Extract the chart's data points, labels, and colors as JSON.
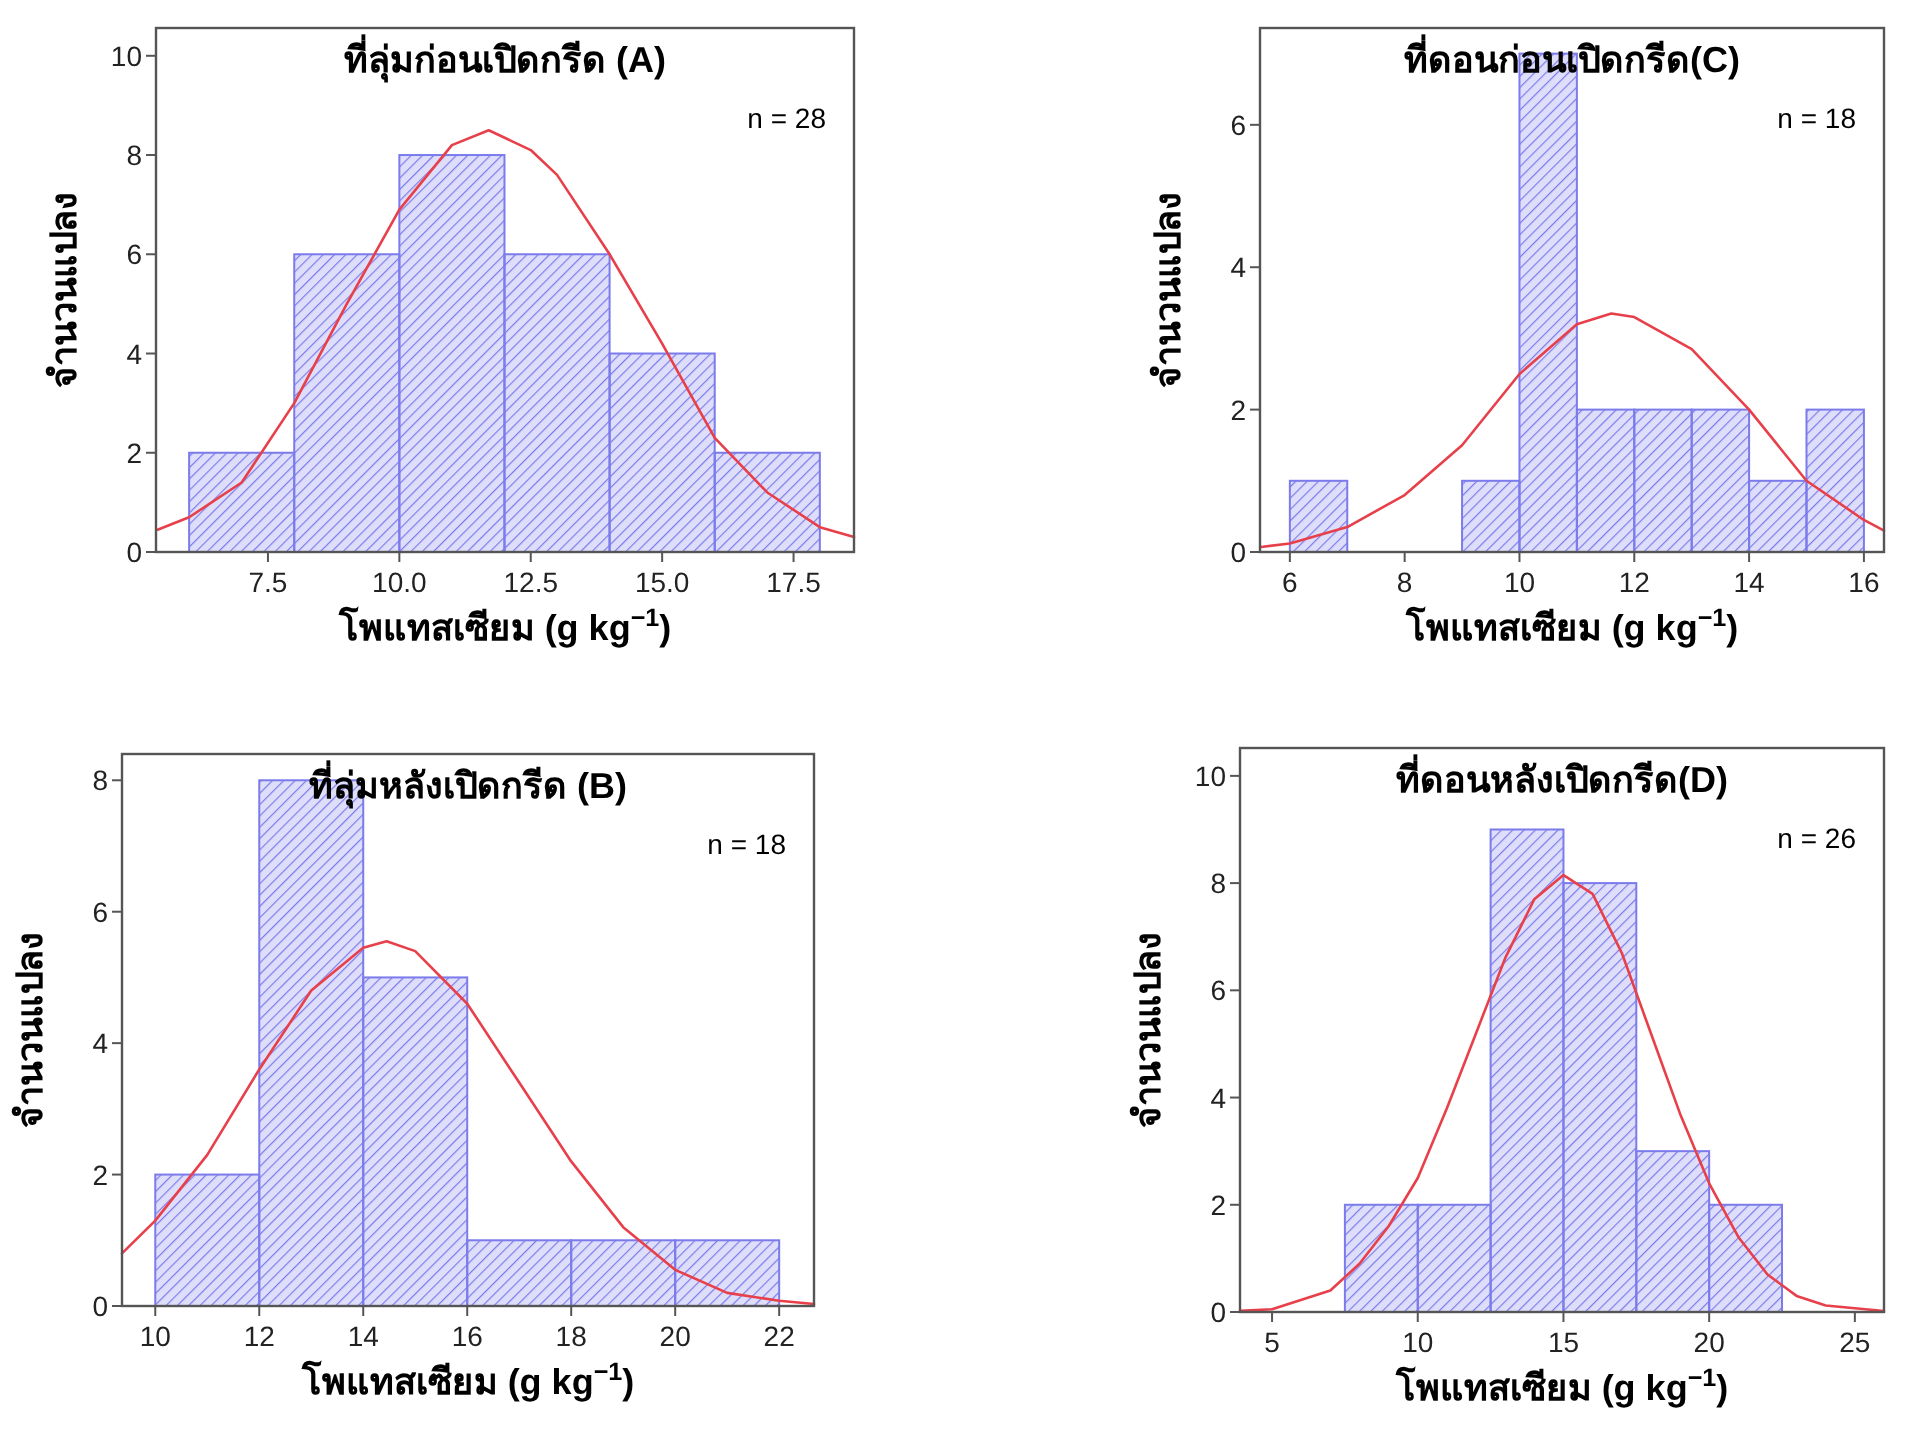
{
  "chart_data": [
    {
      "type": "histogram",
      "title": "ที่ลุ่มก่อนเปิดกรีด (A)",
      "xlabel": "โพแทสเซียม (g kg$^{−1}$)",
      "ylabel": "จำนวนแปลง",
      "annotations": [
        "n = 28"
      ],
      "bins": [
        6,
        8,
        10,
        12,
        14,
        16,
        18
      ],
      "values": [
        2,
        6,
        8,
        6,
        4,
        2
      ],
      "color": "#7b7bec",
      "xlim": [
        5.37,
        18.65
      ],
      "ylim": [
        0,
        10.56
      ],
      "xticks": [
        7.5,
        {
          "value": 10,
          "label": "10.0"
        },
        12.5,
        {
          "value": 15,
          "label": "15.0"
        },
        17.5
      ],
      "yticks": [
        0,
        2,
        4,
        6,
        8,
        10
      ],
      "series": [
        {
          "type": "line",
          "color": "#e8404a",
          "x": [
            5.4,
            6,
            7,
            8,
            9,
            10,
            11,
            11.7,
            12.5,
            13,
            14,
            15,
            16,
            17,
            18,
            18.65
          ],
          "values": [
            0.45,
            0.7,
            1.4,
            3.0,
            5.0,
            6.9,
            8.2,
            8.5,
            8.1,
            7.6,
            6.0,
            4.2,
            2.3,
            1.2,
            0.5,
            0.3
          ]
        }
      ]
    },
    {
      "type": "histogram",
      "title": "ที่ดอนก่อนเปิดกรีด(C)",
      "xlabel": "โพแทสเซียม (g kg$^{−1}$)",
      "ylabel": "จำนวนแปลง",
      "annotations": [
        "n = 18"
      ],
      "bins": [
        6,
        7,
        8,
        9,
        10,
        11,
        12,
        13,
        14,
        15,
        16
      ],
      "values": [
        1,
        0,
        0,
        1,
        7,
        2,
        2,
        2,
        1,
        2
      ],
      "color": "#7b7bec",
      "xlim": [
        5.48,
        16.35
      ],
      "ylim": [
        0,
        7.36
      ],
      "xticks": [
        6,
        8,
        10,
        12,
        14,
        16
      ],
      "yticks": [
        0,
        2,
        4,
        6
      ],
      "series": [
        {
          "type": "line",
          "color": "#e8404a",
          "x": [
            5.5,
            6,
            7,
            8,
            9,
            10,
            11,
            11.6,
            12,
            13,
            14,
            15,
            16,
            16.35
          ],
          "values": [
            0.07,
            0.12,
            0.35,
            0.8,
            1.5,
            2.5,
            3.2,
            3.35,
            3.3,
            2.85,
            2.0,
            1.0,
            0.45,
            0.3
          ]
        }
      ]
    },
    {
      "type": "histogram",
      "title": "ที่ลุ่มหลังเปิดกรีด (B)",
      "xlabel": "โพแทสเซียม (g kg$^{−1}$)",
      "ylabel": "จำนวนแปลง",
      "annotations": [
        "n = 18"
      ],
      "bins": [
        10,
        12,
        14,
        16,
        18,
        20,
        22
      ],
      "values": [
        2,
        8,
        5,
        1,
        1,
        1
      ],
      "color": "#7b7bec",
      "xlim": [
        9.36,
        22.67
      ],
      "ylim": [
        0,
        8.4
      ],
      "xticks": [
        10,
        12,
        14,
        16,
        18,
        20,
        22
      ],
      "yticks": [
        0,
        2,
        4,
        6,
        8
      ],
      "series": [
        {
          "type": "line",
          "color": "#e8404a",
          "x": [
            9.36,
            10,
            11,
            12,
            13,
            14,
            14.45,
            15,
            16,
            17,
            18,
            19,
            20,
            21,
            22,
            22.67
          ],
          "values": [
            0.8,
            1.3,
            2.3,
            3.6,
            4.8,
            5.45,
            5.55,
            5.4,
            4.6,
            3.4,
            2.2,
            1.2,
            0.55,
            0.2,
            0.08,
            0.03
          ]
        }
      ]
    },
    {
      "type": "histogram",
      "title": "ที่ดอนหลังเปิดกรีด(D)",
      "xlabel": "โพแทสเซียม (g kg$^{−1}$)",
      "ylabel": "จำนวนแปลง",
      "annotations": [
        "n = 26"
      ],
      "bins": [
        7.5,
        10,
        12.5,
        15,
        17.5,
        20,
        22.5
      ],
      "values": [
        2,
        2,
        9,
        8,
        3,
        2
      ],
      "color": "#7b7bec",
      "xlim": [
        3.9,
        26
      ],
      "ylim": [
        0,
        10.52
      ],
      "xticks": [
        5,
        10,
        15,
        20,
        25
      ],
      "yticks": [
        0,
        2,
        4,
        6,
        8,
        10
      ],
      "series": [
        {
          "type": "line",
          "color": "#e8404a",
          "x": [
            3.9,
            5,
            7,
            8,
            9,
            10,
            11,
            12,
            13,
            14,
            15,
            16,
            17,
            18,
            19,
            20,
            21,
            22,
            23,
            24,
            26
          ],
          "values": [
            0.02,
            0.05,
            0.4,
            0.9,
            1.6,
            2.5,
            3.8,
            5.2,
            6.6,
            7.7,
            8.15,
            7.8,
            6.7,
            5.2,
            3.7,
            2.4,
            1.4,
            0.7,
            0.3,
            0.12,
            0.02
          ]
        }
      ]
    }
  ]
}
